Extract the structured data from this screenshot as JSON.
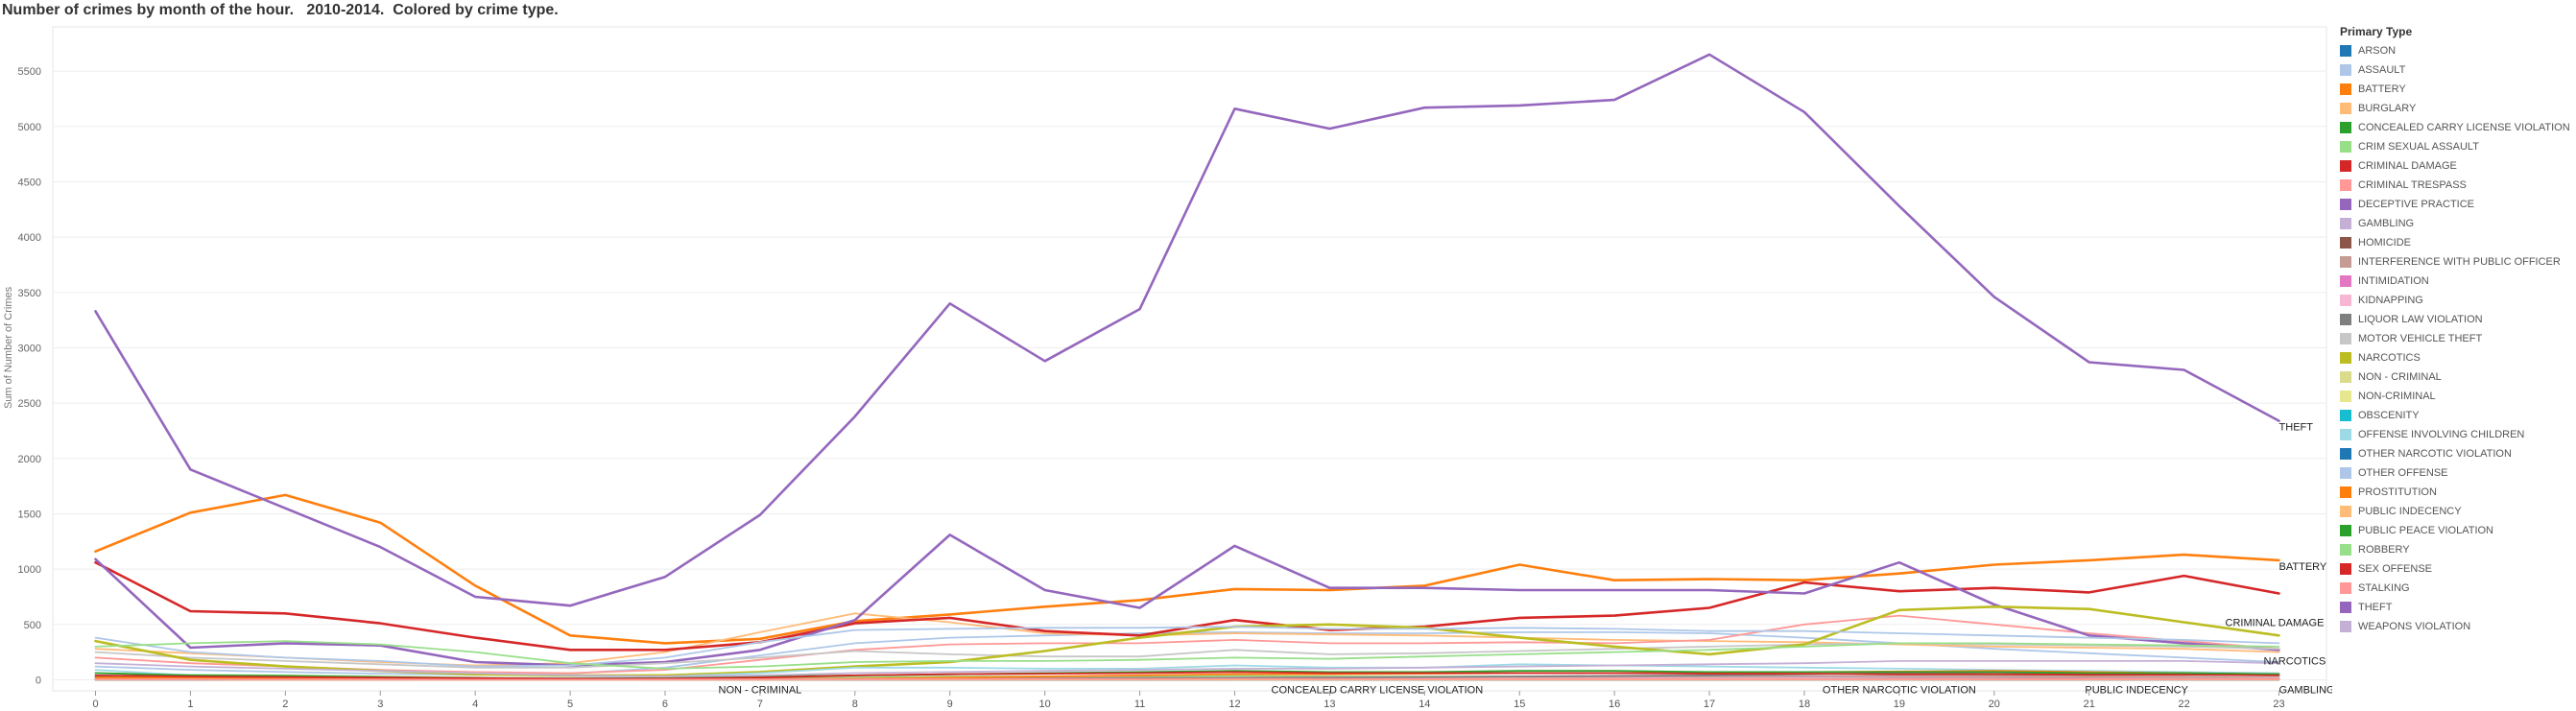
{
  "title": "Number of crimes by month of the hour.   2010-2014.  Colored by crime type.",
  "legend_title": "Primary Type",
  "chart_data": {
    "type": "line",
    "title": "Number of crimes by month of the hour.   2010-2014.  Colored by crime type.",
    "ylabel": "Sum of Number of Crimes",
    "xlabel": "",
    "x": [
      0,
      1,
      2,
      3,
      4,
      5,
      6,
      7,
      8,
      9,
      10,
      11,
      12,
      13,
      14,
      15,
      16,
      17,
      18,
      19,
      20,
      21,
      22,
      23
    ],
    "ylim": [
      -100,
      5900
    ],
    "yticks": [
      0,
      500,
      1000,
      1500,
      2000,
      2500,
      3000,
      3500,
      4000,
      4500,
      5000,
      5500
    ],
    "grid": "horizontal",
    "legend_position": "right",
    "end_labels": [
      {
        "text": "THEFT",
        "series": "THEFT"
      },
      {
        "text": "BATTERY",
        "series": "BATTERY"
      },
      {
        "text": "CRIMINAL DAMAGE",
        "series": "CRIMINAL DAMAGE"
      },
      {
        "text": "NARCOTICS",
        "series": "NARCOTICS"
      },
      {
        "text": "GAMBLING",
        "series": "GAMBLING"
      }
    ],
    "inline_labels": [
      {
        "text": "NON - CRIMINAL",
        "x": 7
      },
      {
        "text": "CONCEALED CARRY LICENSE VIOLATION",
        "x": 13.5
      },
      {
        "text": "OTHER NARCOTIC VIOLATION",
        "x": 19
      },
      {
        "text": "PUBLIC INDECENCY",
        "x": 21.5
      }
    ],
    "series": [
      {
        "name": "ARSON",
        "color": "#1f77b4",
        "values": [
          5,
          4,
          4,
          3,
          2,
          2,
          2,
          3,
          4,
          4,
          4,
          4,
          5,
          5,
          4,
          4,
          5,
          5,
          5,
          5,
          6,
          6,
          6,
          5
        ]
      },
      {
        "name": "ASSAULT",
        "color": "#aec7e8",
        "values": [
          120,
          90,
          70,
          55,
          45,
          55,
          110,
          220,
          330,
          380,
          400,
          420,
          430,
          420,
          420,
          430,
          430,
          420,
          380,
          330,
          280,
          240,
          200,
          160
        ]
      },
      {
        "name": "BATTERY",
        "color": "#ff7f0e",
        "values": [
          1160,
          1510,
          1670,
          1420,
          850,
          400,
          330,
          370,
          530,
          590,
          660,
          720,
          820,
          810,
          850,
          1040,
          900,
          910,
          900,
          960,
          1040,
          1080,
          1130,
          1080
        ]
      },
      {
        "name": "BURGLARY",
        "color": "#ffbb78",
        "values": [
          280,
          240,
          200,
          160,
          130,
          150,
          250,
          430,
          600,
          520,
          420,
          400,
          420,
          410,
          400,
          380,
          360,
          350,
          340,
          320,
          300,
          290,
          280,
          250
        ]
      },
      {
        "name": "CONCEALED CARRY LICENSE VIOLATION",
        "color": "#2ca02c",
        "values": [
          1,
          1,
          1,
          1,
          0,
          0,
          0,
          1,
          1,
          1,
          1,
          1,
          1,
          1,
          1,
          1,
          1,
          1,
          1,
          1,
          1,
          1,
          1,
          1
        ]
      },
      {
        "name": "CRIM SEXUAL ASSAULT",
        "color": "#98df8a",
        "values": [
          60,
          45,
          40,
          30,
          20,
          15,
          15,
          20,
          25,
          30,
          30,
          30,
          35,
          30,
          30,
          30,
          30,
          30,
          30,
          35,
          40,
          45,
          50,
          45
        ]
      },
      {
        "name": "CRIMINAL DAMAGE",
        "color": "#d62728",
        "values": [
          1060,
          620,
          600,
          510,
          380,
          270,
          270,
          340,
          510,
          560,
          440,
          400,
          540,
          450,
          480,
          560,
          580,
          650,
          880,
          800,
          830,
          790,
          940,
          780
        ]
      },
      {
        "name": "CRIMINAL TRESPASS",
        "color": "#ff9896",
        "values": [
          200,
          150,
          120,
          90,
          70,
          60,
          90,
          180,
          270,
          320,
          330,
          330,
          360,
          330,
          330,
          340,
          330,
          360,
          500,
          580,
          500,
          420,
          350,
          280
        ]
      },
      {
        "name": "DECEPTIVE PRACTICE",
        "color": "#9467bd",
        "values": [
          1090,
          290,
          330,
          310,
          160,
          130,
          160,
          270,
          540,
          1310,
          810,
          650,
          1210,
          830,
          830,
          810,
          810,
          810,
          780,
          1060,
          680,
          400,
          330,
          270
        ]
      },
      {
        "name": "GAMBLING",
        "color": "#c5b0d5",
        "values": [
          4,
          3,
          2,
          2,
          1,
          1,
          1,
          2,
          3,
          4,
          5,
          6,
          8,
          9,
          10,
          12,
          14,
          16,
          20,
          22,
          20,
          18,
          14,
          10
        ]
      },
      {
        "name": "HOMICIDE",
        "color": "#8c564b",
        "values": [
          10,
          9,
          8,
          6,
          5,
          3,
          2,
          2,
          2,
          3,
          3,
          3,
          4,
          4,
          4,
          5,
          6,
          7,
          9,
          11,
          12,
          13,
          13,
          12
        ]
      },
      {
        "name": "INTERFERENCE WITH PUBLIC OFFICER",
        "color": "#c49c94",
        "values": [
          15,
          12,
          10,
          8,
          6,
          4,
          4,
          6,
          10,
          14,
          16,
          18,
          20,
          22,
          24,
          26,
          28,
          30,
          32,
          34,
          32,
          28,
          24,
          20
        ]
      },
      {
        "name": "INTIMIDATION",
        "color": "#e377c2",
        "values": [
          3,
          2,
          2,
          1,
          1,
          1,
          1,
          2,
          3,
          4,
          5,
          6,
          6,
          6,
          6,
          6,
          5,
          5,
          4,
          4,
          4,
          4,
          3,
          3
        ]
      },
      {
        "name": "KIDNAPPING",
        "color": "#f7b6d2",
        "values": [
          8,
          6,
          5,
          4,
          3,
          2,
          2,
          4,
          6,
          7,
          8,
          9,
          9,
          9,
          10,
          10,
          10,
          10,
          10,
          9,
          9,
          9,
          8,
          8
        ]
      },
      {
        "name": "LIQUOR LAW VIOLATION",
        "color": "#7f7f7f",
        "values": [
          30,
          20,
          15,
          10,
          5,
          3,
          3,
          5,
          8,
          10,
          12,
          15,
          18,
          20,
          25,
          30,
          35,
          40,
          50,
          60,
          55,
          50,
          45,
          40
        ]
      },
      {
        "name": "MOTOR VEHICLE THEFT",
        "color": "#c7c7c7",
        "values": [
          250,
          200,
          170,
          140,
          110,
          110,
          150,
          200,
          260,
          230,
          210,
          210,
          270,
          230,
          240,
          260,
          280,
          300,
          320,
          330,
          320,
          310,
          300,
          280
        ]
      },
      {
        "name": "NARCOTICS",
        "color": "#bcbd22",
        "values": [
          350,
          180,
          120,
          80,
          50,
          40,
          40,
          70,
          120,
          160,
          260,
          380,
          480,
          500,
          470,
          380,
          300,
          230,
          320,
          630,
          660,
          640,
          520,
          400
        ]
      },
      {
        "name": "NON - CRIMINAL",
        "color": "#dbdb8d",
        "values": [
          2,
          1,
          1,
          1,
          1,
          0,
          0,
          1,
          1,
          2,
          2,
          2,
          2,
          2,
          2,
          2,
          2,
          2,
          2,
          2,
          2,
          1,
          1,
          1
        ]
      },
      {
        "name": "NON-CRIMINAL",
        "color": "#e7e78f",
        "values": [
          1,
          1,
          1,
          0,
          0,
          0,
          0,
          0,
          1,
          1,
          1,
          1,
          1,
          1,
          1,
          1,
          1,
          1,
          1,
          1,
          1,
          1,
          1,
          1
        ]
      },
      {
        "name": "OBSCENITY",
        "color": "#17becf",
        "values": [
          1,
          1,
          1,
          0,
          0,
          0,
          0,
          0,
          1,
          1,
          1,
          1,
          1,
          1,
          1,
          1,
          1,
          1,
          1,
          1,
          1,
          1,
          1,
          1
        ]
      },
      {
        "name": "OFFENSE INVOLVING CHILDREN",
        "color": "#9edae5",
        "values": [
          90,
          40,
          30,
          20,
          15,
          15,
          30,
          60,
          110,
          110,
          100,
          100,
          130,
          110,
          110,
          140,
          130,
          120,
          110,
          100,
          90,
          80,
          70,
          60
        ]
      },
      {
        "name": "OTHER NARCOTIC VIOLATION",
        "color": "#1f77b4",
        "values": [
          0,
          0,
          0,
          0,
          0,
          0,
          0,
          0,
          0,
          0,
          0,
          0,
          1,
          0,
          0,
          0,
          0,
          0,
          1,
          1,
          0,
          0,
          0,
          0
        ]
      },
      {
        "name": "OTHER OFFENSE",
        "color": "#aec7e8",
        "values": [
          380,
          250,
          200,
          170,
          120,
          130,
          200,
          340,
          450,
          460,
          470,
          470,
          480,
          460,
          460,
          470,
          460,
          440,
          440,
          420,
          400,
          380,
          360,
          330
        ]
      },
      {
        "name": "PROSTITUTION",
        "color": "#ff7f0e",
        "values": [
          20,
          20,
          15,
          10,
          8,
          5,
          4,
          5,
          10,
          20,
          30,
          40,
          50,
          50,
          55,
          60,
          60,
          65,
          70,
          75,
          80,
          70,
          60,
          50
        ]
      },
      {
        "name": "PUBLIC INDECENCY",
        "color": "#ffbb78",
        "values": [
          1,
          1,
          0,
          0,
          0,
          0,
          0,
          0,
          1,
          1,
          1,
          1,
          1,
          1,
          1,
          1,
          1,
          1,
          1,
          1,
          1,
          1,
          1,
          1
        ]
      },
      {
        "name": "PUBLIC PEACE VIOLATION",
        "color": "#2ca02c",
        "values": [
          60,
          40,
          35,
          25,
          15,
          10,
          15,
          30,
          40,
          50,
          60,
          70,
          80,
          70,
          70,
          80,
          80,
          70,
          70,
          70,
          70,
          60,
          60,
          50
        ]
      },
      {
        "name": "ROBBERY",
        "color": "#98df8a",
        "values": [
          300,
          330,
          350,
          320,
          250,
          150,
          100,
          120,
          160,
          170,
          170,
          180,
          200,
          190,
          210,
          230,
          250,
          270,
          300,
          330,
          330,
          320,
          310,
          300
        ]
      },
      {
        "name": "SEX OFFENSE",
        "color": "#d62728",
        "values": [
          40,
          30,
          25,
          20,
          15,
          10,
          10,
          20,
          40,
          50,
          55,
          60,
          70,
          60,
          60,
          60,
          60,
          55,
          55,
          50,
          50,
          45,
          45,
          40
        ]
      },
      {
        "name": "STALKING",
        "color": "#ff9896",
        "values": [
          5,
          3,
          3,
          2,
          1,
          1,
          2,
          4,
          6,
          7,
          7,
          7,
          8,
          7,
          7,
          7,
          7,
          7,
          6,
          6,
          6,
          5,
          5,
          5
        ]
      },
      {
        "name": "THEFT",
        "color": "#9467bd",
        "values": [
          3330,
          1900,
          1550,
          1200,
          750,
          670,
          930,
          1490,
          2380,
          3400,
          2880,
          3350,
          5160,
          4980,
          5170,
          5190,
          5240,
          5650,
          5130,
          4280,
          3460,
          2870,
          2800,
          2340
        ]
      },
      {
        "name": "WEAPONS VIOLATION",
        "color": "#c5b0d5",
        "values": [
          150,
          120,
          100,
          80,
          60,
          40,
          30,
          40,
          60,
          70,
          80,
          90,
          100,
          100,
          110,
          120,
          130,
          140,
          150,
          170,
          170,
          170,
          170,
          150
        ]
      }
    ]
  }
}
